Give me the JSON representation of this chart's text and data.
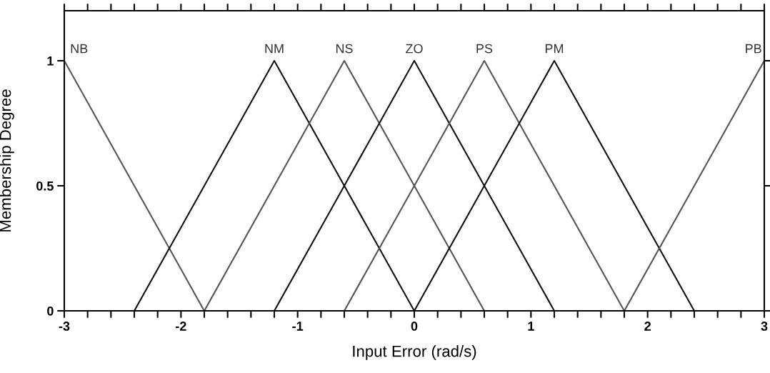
{
  "chart_data": {
    "type": "line",
    "xlabel": "Input Error (rad/s)",
    "ylabel": "Membership Degree",
    "xlim": [
      -3,
      3
    ],
    "ylim": [
      0,
      1.2
    ],
    "xticks": [
      -3,
      {
        "value": -2.8,
        "label": null
      },
      {
        "value": -2.6,
        "label": null
      },
      {
        "value": -2.4,
        "label": null
      },
      {
        "value": -2.2,
        "label": null
      },
      -2,
      {
        "value": -1.8,
        "label": null
      },
      {
        "value": -1.6,
        "label": null
      },
      {
        "value": -1.4,
        "label": null
      },
      {
        "value": -1.2,
        "label": null
      },
      -1,
      {
        "value": -0.8,
        "label": null
      },
      {
        "value": -0.6,
        "label": null
      },
      {
        "value": -0.4,
        "label": null
      },
      {
        "value": -0.2,
        "label": null
      },
      0,
      {
        "value": 0.2,
        "label": null
      },
      {
        "value": 0.4,
        "label": null
      },
      {
        "value": 0.6,
        "label": null
      },
      {
        "value": 0.8,
        "label": null
      },
      1,
      {
        "value": 1.2,
        "label": null
      },
      {
        "value": 1.4,
        "label": null
      },
      {
        "value": 1.6,
        "label": null
      },
      {
        "value": 1.8,
        "label": null
      },
      2,
      {
        "value": 2.2,
        "label": null
      },
      {
        "value": 2.4,
        "label": null
      },
      {
        "value": 2.6,
        "label": null
      },
      {
        "value": 2.8,
        "label": null
      },
      3
    ],
    "yticks": [
      0,
      0.5,
      1
    ],
    "grid": false,
    "legend": false,
    "marker": "none",
    "line_style": "solid",
    "series": [
      {
        "name": "NB",
        "color": "#555555",
        "x": [
          -3,
          -1.8
        ],
        "values": [
          1,
          0
        ]
      },
      {
        "name": "NM",
        "color": "#111111",
        "x": [
          -2.4,
          -1.2,
          0
        ],
        "values": [
          0,
          1,
          0
        ]
      },
      {
        "name": "NS",
        "color": "#555555",
        "x": [
          -1.8,
          -0.6,
          0.6
        ],
        "values": [
          0,
          1,
          0
        ]
      },
      {
        "name": "ZO",
        "color": "#111111",
        "x": [
          -1.2,
          0,
          1.2
        ],
        "values": [
          0,
          1,
          0
        ]
      },
      {
        "name": "PS",
        "color": "#555555",
        "x": [
          -0.6,
          0.6,
          1.8
        ],
        "values": [
          0,
          1,
          0
        ]
      },
      {
        "name": "PM",
        "color": "#111111",
        "x": [
          0,
          1.2,
          2.4
        ],
        "values": [
          0,
          1,
          0
        ]
      },
      {
        "name": "PB",
        "color": "#555555",
        "x": [
          1.8,
          3
        ],
        "values": [
          0,
          1
        ]
      }
    ]
  }
}
